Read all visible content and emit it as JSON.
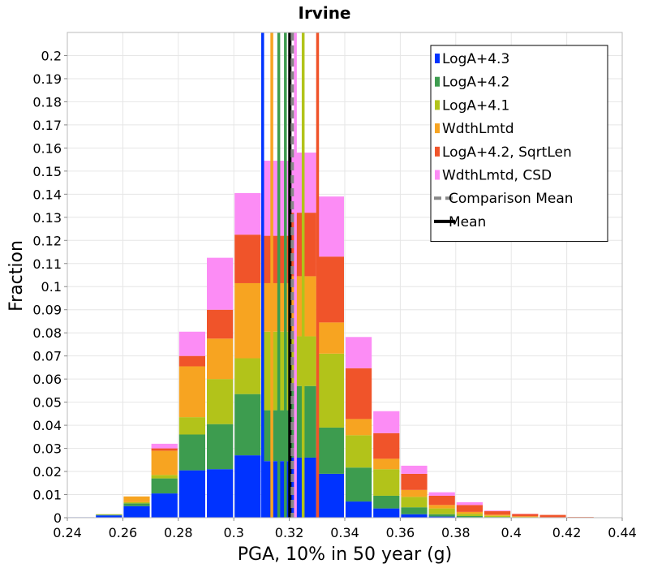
{
  "chart_data": {
    "type": "bar",
    "stacked": true,
    "title": "Irvine",
    "xlabel": "PGA, 10% in 50 year (g)",
    "ylabel": "Fraction",
    "xlim": [
      0.24,
      0.44
    ],
    "ylim": [
      0,
      0.21
    ],
    "grid": true,
    "legend_position": "top-right",
    "bin_width": 0.01,
    "bin_centers": [
      0.245,
      0.255,
      0.265,
      0.275,
      0.285,
      0.295,
      0.305,
      0.315,
      0.325,
      0.335,
      0.345,
      0.355,
      0.365,
      0.375,
      0.385,
      0.395,
      0.405,
      0.415,
      0.425,
      0.435
    ],
    "x_ticks": [
      "0.24",
      "0.26",
      "0.28",
      "0.3",
      "0.32",
      "0.34",
      "0.36",
      "0.38",
      "0.4",
      "0.42",
      "0.44"
    ],
    "y_ticks": [
      "0",
      "0.01",
      "0.02",
      "0.03",
      "0.04",
      "0.05",
      "0.06",
      "0.07",
      "0.08",
      "0.09",
      "0.1",
      "0.11",
      "0.12",
      "0.13",
      "0.14",
      "0.15",
      "0.16",
      "0.17",
      "0.18",
      "0.19",
      "0.2"
    ],
    "series": [
      {
        "name": "LogA+4.3",
        "color": "#0033ff",
        "values": [
          0.0002,
          0.001,
          0.005,
          0.0105,
          0.0205,
          0.021,
          0.027,
          0.0245,
          0.026,
          0.019,
          0.007,
          0.004,
          0.0015,
          0.0005,
          0.0002,
          0.0001,
          0,
          0,
          0,
          0
        ]
      },
      {
        "name": "LogA+4.2",
        "color": "#3d9c4f",
        "values": [
          0,
          0.0003,
          0.0012,
          0.0065,
          0.0155,
          0.0195,
          0.0265,
          0.022,
          0.031,
          0.02,
          0.0147,
          0.0055,
          0.003,
          0.001,
          0.0005,
          0.0002,
          0.0001,
          0,
          0,
          0
        ]
      },
      {
        "name": "LogA+4.1",
        "color": "#b2c31a",
        "values": [
          0,
          0.0001,
          0.0005,
          0.0015,
          0.0075,
          0.0195,
          0.0155,
          0.034,
          0.0215,
          0.032,
          0.014,
          0.0115,
          0.0045,
          0.0025,
          0.001,
          0.0005,
          0.0002,
          0.0001,
          0,
          0
        ]
      },
      {
        "name": "WdthLmtd",
        "color": "#f7a421",
        "values": [
          0,
          0.0001,
          0.0025,
          0.0105,
          0.022,
          0.0175,
          0.0325,
          0.021,
          0.026,
          0.0135,
          0.007,
          0.0045,
          0.003,
          0.0015,
          0.0008,
          0.0005,
          0.0003,
          0.0001,
          0,
          0
        ]
      },
      {
        "name": "LogA+4.2, SqrtLen",
        "color": "#f0542a",
        "values": [
          0,
          0,
          0,
          0.001,
          0.0045,
          0.0125,
          0.021,
          0.0205,
          0.0275,
          0.0285,
          0.022,
          0.0111,
          0.007,
          0.004,
          0.003,
          0.0015,
          0.001,
          0.001,
          0.0003,
          0
        ]
      },
      {
        "name": "WdthLmtd, CSD",
        "color": "#fc8cf5",
        "values": [
          0,
          0,
          0,
          0.002,
          0.0105,
          0.0225,
          0.018,
          0.0325,
          0.026,
          0.026,
          0.0135,
          0.0095,
          0.0035,
          0.0015,
          0.0012,
          0.0003,
          0.0001,
          0,
          0,
          0
        ]
      }
    ],
    "vertical_lines": [
      {
        "name": "LogA+4.3",
        "x": 0.3104,
        "color": "#0033ff"
      },
      {
        "name": "WdthLmtd",
        "x": 0.3137,
        "color": "#f7a421"
      },
      {
        "name": "LogA+4.2",
        "x": 0.3162,
        "color": "#3d9c4f"
      },
      {
        "name": "LogA+4.2",
        "x": 0.3186,
        "color": "#3d9c4f"
      },
      {
        "name": "Mean",
        "x": 0.3202,
        "color": "#000000",
        "style": "solid"
      },
      {
        "name": "Comparison Mean",
        "x": 0.3211,
        "color": "#888888",
        "style": "dashed"
      },
      {
        "name": "WdthLmtd, CSD",
        "x": 0.3222,
        "color": "#fc8cf5"
      },
      {
        "name": "LogA+4.1",
        "x": 0.325,
        "color": "#b2c31a"
      },
      {
        "name": "LogA+4.2, SqrtLen",
        "x": 0.3302,
        "color": "#f0542a"
      }
    ],
    "legend": [
      {
        "label": "LogA+4.3",
        "color": "#0033ff",
        "kind": "box"
      },
      {
        "label": "LogA+4.2",
        "color": "#3d9c4f",
        "kind": "box"
      },
      {
        "label": "LogA+4.1",
        "color": "#b2c31a",
        "kind": "box"
      },
      {
        "label": "WdthLmtd",
        "color": "#f7a421",
        "kind": "box"
      },
      {
        "label": "LogA+4.2, SqrtLen",
        "color": "#f0542a",
        "kind": "box"
      },
      {
        "label": "WdthLmtd, CSD",
        "color": "#fc8cf5",
        "kind": "box"
      },
      {
        "label": "Comparison Mean",
        "color": "#888888",
        "kind": "dashed"
      },
      {
        "label": "Mean",
        "color": "#000000",
        "kind": "solid"
      }
    ]
  }
}
